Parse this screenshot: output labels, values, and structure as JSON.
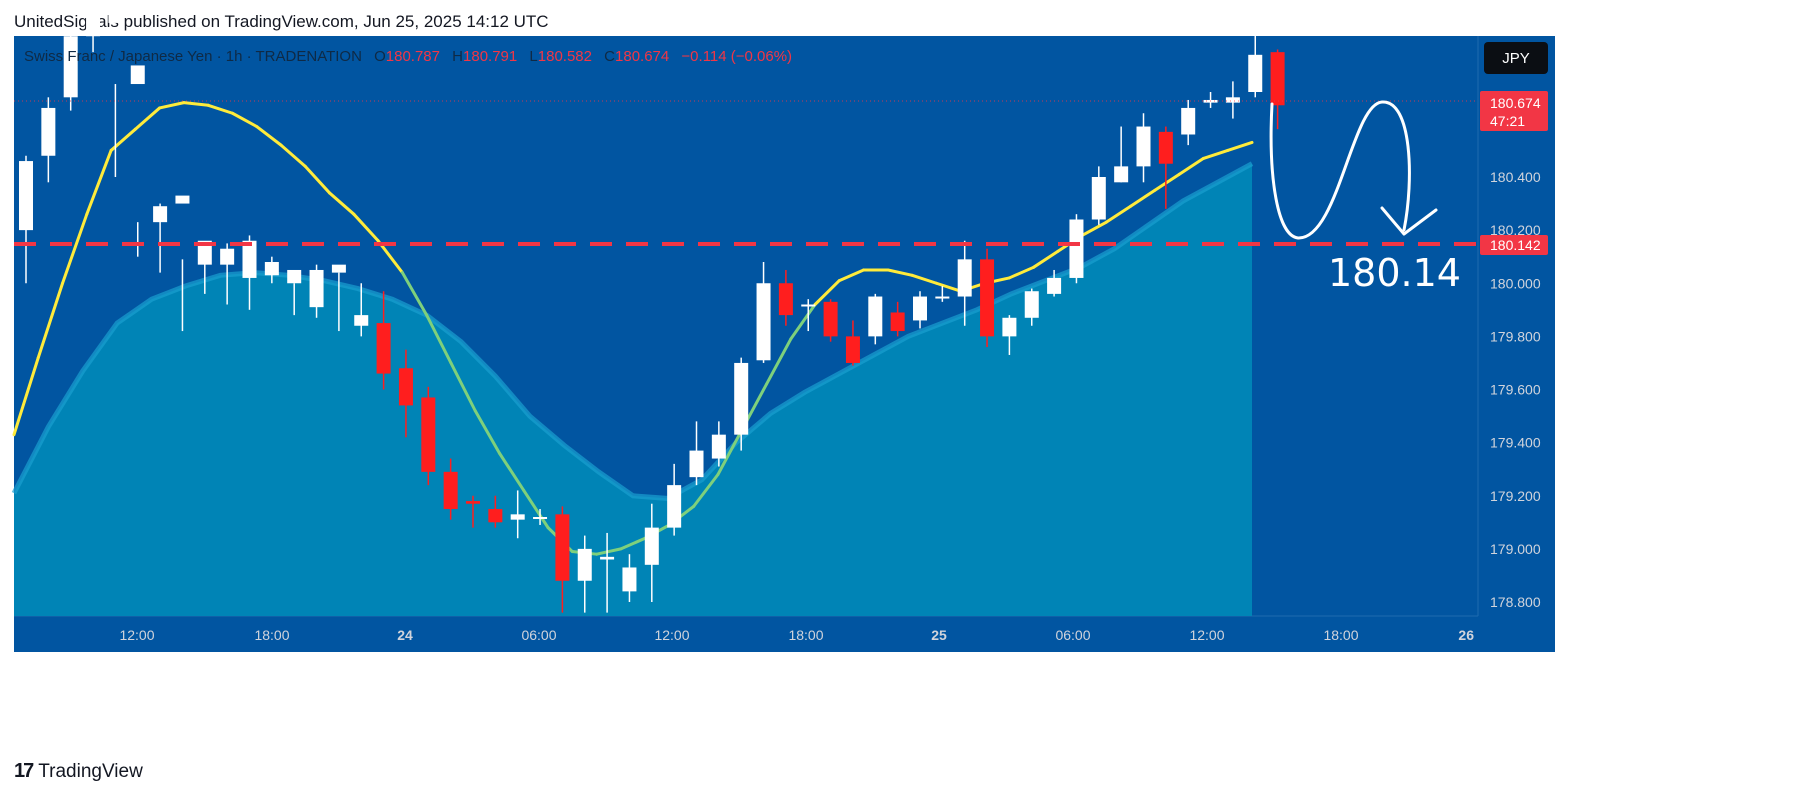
{
  "header": {
    "published": "UnitedSignals published on TradingView.com, Jun 25, 2025 14:12 UTC"
  },
  "legend": {
    "symbol": "Swiss Franc / Japanese Yen · 1h · TRADENATION",
    "o_label": "O",
    "o_value": "180.787",
    "h_label": "H",
    "h_value": "180.791",
    "l_label": "L",
    "l_value": "180.582",
    "c_label": "C",
    "c_value": "180.674",
    "change": "−0.114 (−0.06%)"
  },
  "currency_button": "JPY",
  "price_tag": {
    "price": "180.674",
    "countdown": "47:21"
  },
  "level_tag": "180.142",
  "annotation": "180.14",
  "footer": {
    "logo_mark": "17",
    "logo_text": "TradingView"
  },
  "colors": {
    "background": "#0155A1",
    "area": "#0084B6",
    "area_line": "#1A9FD0",
    "fast_ma": "#FFEB3B",
    "fast_ma_cross": "#7ED07C",
    "up_candle": "#FFFFFF",
    "down_candle": "#FF1E1E",
    "level_line": "#F23645",
    "axis_text": "#D1D4DC"
  },
  "chart_data": {
    "type": "candlestick",
    "title": "Swiss Franc / Japanese Yen · 1h · TRADENATION",
    "ylim": [
      178.7,
      181.0
    ],
    "y_ticks": [
      "180.400",
      "180.200",
      "180.000",
      "179.800",
      "179.600",
      "179.400",
      "179.200",
      "179.000",
      "178.800"
    ],
    "x_ticks": [
      "12:00",
      "18:00",
      "24",
      "06:00",
      "12:00",
      "18:00",
      "25",
      "06:00",
      "12:00",
      "18:00",
      "26"
    ],
    "candles_ohlc": [
      [
        180.2,
        180.46,
        180.0,
        180.48
      ],
      [
        180.48,
        180.66,
        180.38,
        180.7
      ],
      [
        180.7,
        180.93,
        180.65,
        180.96
      ],
      [
        180.93,
        181.01,
        180.87,
        181.0
      ],
      [
        180.98,
        181.04,
        180.4,
        180.75
      ],
      [
        180.75,
        180.82,
        180.1,
        180.23
      ],
      [
        180.23,
        180.29,
        180.04,
        180.3
      ],
      [
        180.3,
        180.33,
        179.82,
        180.09
      ],
      [
        180.07,
        180.16,
        179.96,
        180.15
      ],
      [
        180.07,
        180.13,
        179.92,
        180.15
      ],
      [
        180.02,
        180.16,
        179.9,
        180.18
      ],
      [
        180.03,
        180.08,
        180.0,
        180.1
      ],
      [
        180.0,
        180.05,
        179.88,
        180.0
      ],
      [
        179.91,
        180.05,
        179.87,
        180.07
      ],
      [
        180.04,
        180.07,
        179.82,
        180.04
      ],
      [
        179.84,
        179.88,
        179.8,
        180.0
      ],
      [
        179.85,
        179.66,
        179.6,
        179.97
      ],
      [
        179.68,
        179.54,
        179.42,
        179.75
      ],
      [
        179.57,
        179.29,
        179.24,
        179.61
      ],
      [
        179.29,
        179.15,
        179.11,
        179.34
      ],
      [
        179.18,
        179.17,
        179.08,
        179.2
      ],
      [
        179.15,
        179.1,
        179.08,
        179.2
      ],
      [
        179.11,
        179.13,
        179.04,
        179.22
      ],
      [
        179.12,
        179.12,
        179.09,
        179.15
      ],
      [
        179.13,
        178.88,
        178.76,
        179.16
      ],
      [
        178.88,
        179.0,
        178.76,
        179.05
      ],
      [
        178.96,
        178.97,
        178.76,
        179.06
      ],
      [
        178.84,
        178.93,
        178.8,
        178.98
      ],
      [
        178.94,
        179.08,
        178.8,
        179.17
      ],
      [
        179.08,
        179.24,
        179.05,
        179.32
      ],
      [
        179.27,
        179.37,
        179.24,
        179.48
      ],
      [
        179.34,
        179.43,
        179.31,
        179.48
      ],
      [
        179.43,
        179.7,
        179.37,
        179.72
      ],
      [
        179.71,
        180.0,
        179.7,
        180.08
      ],
      [
        180.0,
        179.88,
        179.84,
        180.05
      ],
      [
        179.92,
        179.92,
        179.82,
        179.94
      ],
      [
        179.93,
        179.8,
        179.78,
        179.94
      ],
      [
        179.8,
        179.7,
        179.69,
        179.86
      ],
      [
        179.8,
        179.95,
        179.77,
        179.96
      ],
      [
        179.89,
        179.82,
        179.8,
        179.93
      ],
      [
        179.86,
        179.95,
        179.83,
        179.97
      ],
      [
        179.95,
        179.95,
        179.93,
        179.99
      ],
      [
        179.95,
        180.09,
        179.84,
        180.16
      ],
      [
        180.09,
        179.8,
        179.76,
        180.13
      ],
      [
        179.8,
        179.87,
        179.73,
        179.88
      ],
      [
        179.87,
        179.97,
        179.84,
        179.98
      ],
      [
        179.96,
        180.02,
        179.95,
        180.05
      ],
      [
        180.02,
        180.24,
        180.0,
        180.26
      ],
      [
        180.24,
        180.4,
        180.22,
        180.44
      ],
      [
        180.38,
        180.44,
        180.38,
        180.59
      ],
      [
        180.44,
        180.59,
        180.38,
        180.64
      ],
      [
        180.57,
        180.45,
        180.28,
        180.59
      ],
      [
        180.56,
        180.66,
        180.52,
        180.69
      ],
      [
        180.68,
        180.69,
        180.66,
        180.72
      ],
      [
        180.68,
        180.7,
        180.62,
        180.76
      ],
      [
        180.72,
        180.86,
        180.7,
        180.97
      ],
      [
        180.87,
        180.67,
        180.58,
        180.88
      ]
    ],
    "fast_ma": [
      179.43,
      179.72,
      180.0,
      180.26,
      180.5,
      180.58,
      180.66,
      180.68,
      180.67,
      180.64,
      180.59,
      180.52,
      180.44,
      180.34,
      180.26,
      180.16,
      180.04,
      179.88,
      179.7,
      179.52,
      179.36,
      179.22,
      179.08,
      178.99,
      178.98,
      179.0,
      179.04,
      179.09,
      179.16,
      179.28,
      179.45,
      179.62,
      179.79,
      179.92,
      180.01,
      180.05,
      180.05,
      180.03,
      180.0,
      179.97,
      180.0,
      180.02,
      180.06,
      180.12,
      180.18,
      180.23,
      180.29,
      180.35,
      180.41,
      180.47,
      180.5,
      180.53
    ],
    "slow_ma": [
      179.21,
      179.46,
      179.67,
      179.85,
      179.94,
      179.99,
      180.03,
      180.04,
      180.03,
      180.01,
      179.98,
      179.94,
      179.88,
      179.78,
      179.65,
      179.5,
      179.39,
      179.29,
      179.2,
      179.19,
      179.26,
      179.4,
      179.51,
      179.59,
      179.66,
      179.73,
      179.8,
      179.85,
      179.9,
      179.96,
      180.01,
      180.06,
      180.13,
      180.22,
      180.31,
      180.38,
      180.45
    ]
  }
}
